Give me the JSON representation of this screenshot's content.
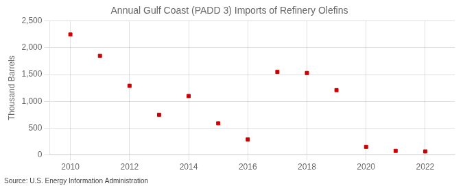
{
  "chart_data": {
    "type": "scatter",
    "title": "Annual Gulf Coast (PADD 3) Imports of Refinery Olefins",
    "y_label": "Thousand Barrels",
    "annotations": [
      "Source: U.S. Energy Information Administration"
    ],
    "x": [
      2010,
      2011,
      2012,
      2013,
      2014,
      2015,
      2016,
      2017,
      2018,
      2019,
      2020,
      2021,
      2022
    ],
    "values": [
      2250,
      1850,
      1290,
      750,
      1100,
      590,
      290,
      1550,
      1530,
      1210,
      150,
      75,
      65
    ],
    "color": "#cc0000",
    "marker": "square",
    "xlim": [
      2009.3,
      2023.0
    ],
    "xticks": [
      2010,
      2012,
      2014,
      2016,
      2018,
      2020,
      2022
    ],
    "ylim": [
      0,
      2500
    ],
    "yticks": [
      0,
      500,
      {
        "value": 1000,
        "label": "1,000"
      },
      {
        "value": 1500,
        "label": "1,500"
      },
      {
        "value": 2000,
        "label": "2,000"
      },
      {
        "value": 2500,
        "label": "2,500"
      }
    ],
    "grid": true
  }
}
